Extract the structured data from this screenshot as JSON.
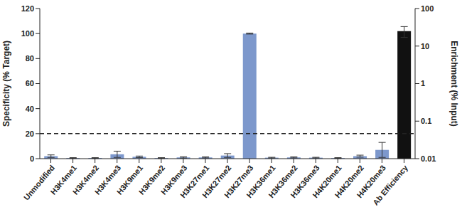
{
  "chart_data": {
    "type": "bar",
    "categories": [
      "Unmodified",
      "H3K4me1",
      "H3K4me2",
      "H3K4me3",
      "H3K9me1",
      "H3K9me2",
      "H3K9me3",
      "H3K27me1",
      "H3K27me2",
      "H3K27me3",
      "H3K36me1",
      "H3K36me2",
      "H3K36me3",
      "H4K20me1",
      "H4K20me2",
      "H4K20me3",
      "Ab Efficiency"
    ],
    "series": [
      {
        "axis": "y",
        "color": "#7d98cc",
        "values": [
          2,
          0.5,
          0.5,
          3.5,
          1.5,
          0.5,
          1,
          1,
          2.5,
          100,
          0.8,
          1,
          0.8,
          0.5,
          2,
          7,
          null
        ],
        "errors": [
          1,
          0.3,
          0.3,
          2.5,
          0.6,
          0.3,
          0.5,
          0.4,
          1.5,
          0.4,
          0.3,
          0.4,
          0.3,
          0.3,
          0.8,
          6,
          null
        ]
      },
      {
        "axis": "y2",
        "color": "#111111",
        "values": [
          null,
          null,
          null,
          null,
          null,
          null,
          null,
          null,
          null,
          null,
          null,
          null,
          null,
          null,
          null,
          null,
          25
        ],
        "errors": [
          null,
          null,
          null,
          null,
          null,
          null,
          null,
          null,
          null,
          null,
          null,
          null,
          null,
          null,
          null,
          null,
          8
        ]
      }
    ],
    "y_label": "Specificity (% Target)",
    "y2_label": "Enrichment (% Input)",
    "ylim": [
      0,
      120
    ],
    "yticks": [
      0,
      20,
      40,
      60,
      80,
      100,
      120
    ],
    "y2lim": [
      0.01,
      100
    ],
    "y2ticks": [
      0.01,
      0.1,
      1,
      10,
      100
    ],
    "log": "y2",
    "reference_lines": [
      {
        "y": 20,
        "line_style": "dashed"
      }
    ]
  }
}
